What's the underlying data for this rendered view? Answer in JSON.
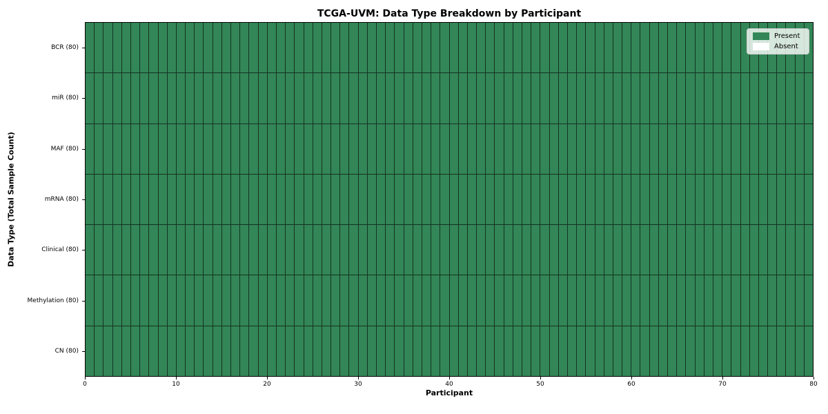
{
  "chart_data": {
    "type": "heatmap",
    "title": "TCGA-UVM: Data Type Breakdown by Participant",
    "xlabel": "Participant",
    "ylabel": "Data Type (Total Sample Count)",
    "xlim": [
      0,
      80
    ],
    "x_ticks": [
      0,
      10,
      20,
      30,
      40,
      50,
      60,
      70,
      80
    ],
    "n_participants": 80,
    "grid_on": true,
    "rows": [
      {
        "label": "BCR (80)",
        "data_type": "BCR",
        "total_sample_count": 80,
        "present_count": 80,
        "absent_count": 0
      },
      {
        "label": "miR (80)",
        "data_type": "miR",
        "total_sample_count": 80,
        "present_count": 80,
        "absent_count": 0
      },
      {
        "label": "MAF (80)",
        "data_type": "MAF",
        "total_sample_count": 80,
        "present_count": 80,
        "absent_count": 0
      },
      {
        "label": "mRNA (80)",
        "data_type": "mRNA",
        "total_sample_count": 80,
        "present_count": 80,
        "absent_count": 0
      },
      {
        "label": "Clinical (80)",
        "data_type": "Clinical",
        "total_sample_count": 80,
        "present_count": 80,
        "absent_count": 0
      },
      {
        "label": "Methylation (80)",
        "data_type": "Methylation",
        "total_sample_count": 80,
        "present_count": 80,
        "absent_count": 0
      },
      {
        "label": "CN (80)",
        "data_type": "CN",
        "total_sample_count": 80,
        "present_count": 80,
        "absent_count": 0
      }
    ],
    "all_cells_state": "present",
    "legend": {
      "position": "upper right",
      "entries": [
        {
          "label": "Present",
          "color": "#338657"
        },
        {
          "label": "Absent",
          "color": "#ffffff"
        }
      ]
    },
    "colors": {
      "present": "#338657",
      "absent": "#ffffff",
      "grid_line": "rgba(0,0,0,0.62)",
      "spine": "#000000",
      "legend_border": "#cccccc"
    }
  }
}
